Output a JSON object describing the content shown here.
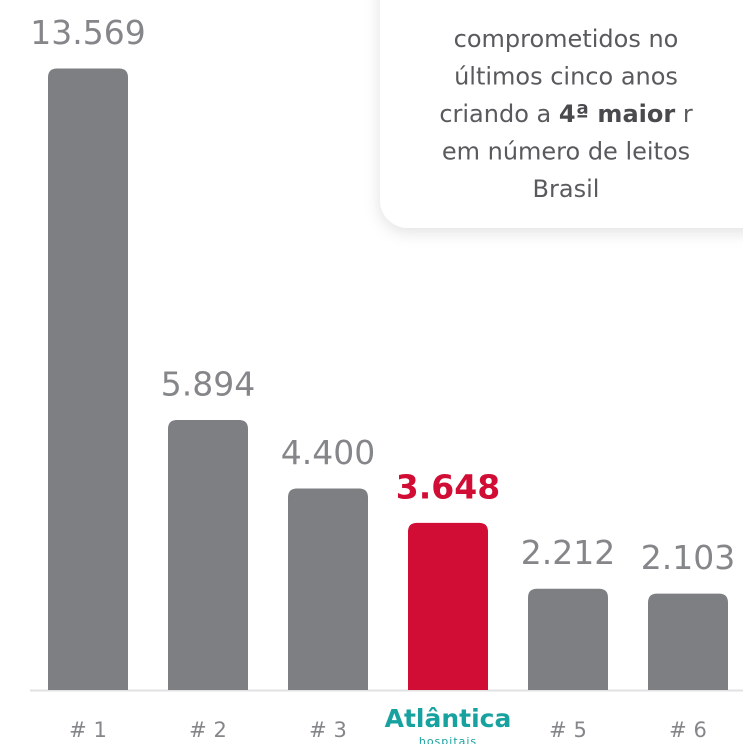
{
  "chart_data": {
    "type": "bar",
    "categories": [
      "# 1",
      "# 2",
      "# 3",
      "Atlântica",
      "# 5",
      "# 6"
    ],
    "values": [
      13569,
      5894,
      4400,
      3648,
      2212,
      2103
    ],
    "value_labels": [
      "13.569",
      "5.894",
      "4.400",
      "3.648",
      "2.212",
      "2.103"
    ],
    "color": "#7e7f83",
    "label_color": "#85868a",
    "highlight": {
      "index": 3,
      "color": "#d10d35",
      "logo_color": "#17a2a0",
      "logo_subtitle": "hospitais"
    },
    "ylim": [
      0,
      15000
    ],
    "grid": false,
    "card": {
      "lines": [
        [
          {
            "text": "comprometidos no"
          }
        ],
        [
          {
            "text": "últimos cinco anos"
          }
        ],
        [
          {
            "text": "criando a "
          },
          {
            "text": "4ª maior",
            "bold": true
          },
          {
            "text": " r"
          }
        ],
        [
          {
            "text": "em número de leitos"
          }
        ],
        [
          {
            "text": "Brasil"
          }
        ]
      ]
    }
  }
}
